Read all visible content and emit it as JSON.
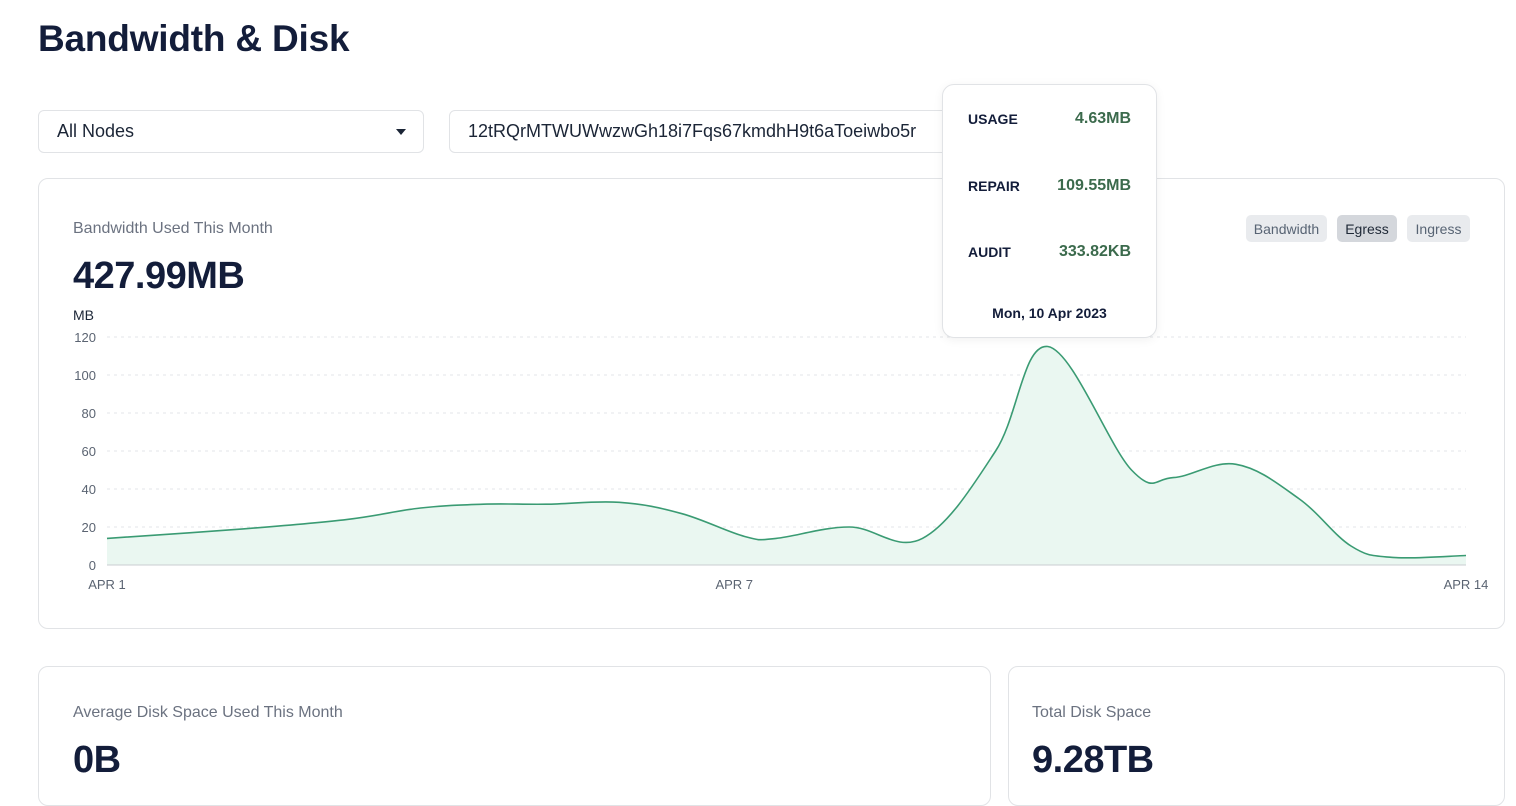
{
  "page": {
    "title": "Bandwidth & Disk"
  },
  "node_select": {
    "value": "All Nodes"
  },
  "node_id": {
    "value": "12tRQrMTWUWwzwGh18i7Fqs67kmdhH9t6aToeiwbo5r"
  },
  "bandwidth_card": {
    "label": "Bandwidth Used This Month",
    "value": "427.99MB",
    "toggles": [
      "Bandwidth",
      "Egress",
      "Ingress"
    ],
    "active_toggle": "Egress"
  },
  "tooltip": {
    "usage_label": "USAGE",
    "usage_value": "4.63MB",
    "repair_label": "REPAIR",
    "repair_value": "109.55MB",
    "audit_label": "AUDIT",
    "audit_value": "333.82KB",
    "date": "Mon, 10 Apr 2023"
  },
  "chart_data": {
    "type": "area",
    "ylabel": "MB",
    "ylim": [
      0,
      120
    ],
    "yticks": [
      "0",
      "20",
      "40",
      "60",
      "80",
      "100",
      "120"
    ],
    "xticks": [
      {
        "label": "APR 1",
        "day": 1
      },
      {
        "label": "APR 7",
        "day": 7
      },
      {
        "label": "APR 14",
        "day": 14
      }
    ],
    "xlim": [
      1,
      14
    ],
    "grid": true,
    "line_color": "#3a9b73",
    "fill_color": "#eaf7f1",
    "points": [
      [
        1.0,
        14
      ],
      [
        2.3,
        19
      ],
      [
        3.3,
        24
      ],
      [
        4.0,
        30
      ],
      [
        4.6,
        32
      ],
      [
        5.2,
        32
      ],
      [
        5.9,
        33
      ],
      [
        6.5,
        27
      ],
      [
        7.1,
        15
      ],
      [
        7.4,
        14
      ],
      [
        8.1,
        20
      ],
      [
        8.8,
        14
      ],
      [
        9.5,
        60
      ],
      [
        10.0,
        115
      ],
      [
        10.8,
        50
      ],
      [
        11.2,
        46
      ],
      [
        11.8,
        53
      ],
      [
        12.4,
        35
      ],
      [
        12.9,
        10
      ],
      [
        13.3,
        4
      ],
      [
        14.0,
        5
      ]
    ]
  },
  "disk_avg_card": {
    "label": "Average Disk Space Used This Month",
    "value": "0B"
  },
  "disk_total_card": {
    "label": "Total Disk Space",
    "value": "9.28TB"
  }
}
